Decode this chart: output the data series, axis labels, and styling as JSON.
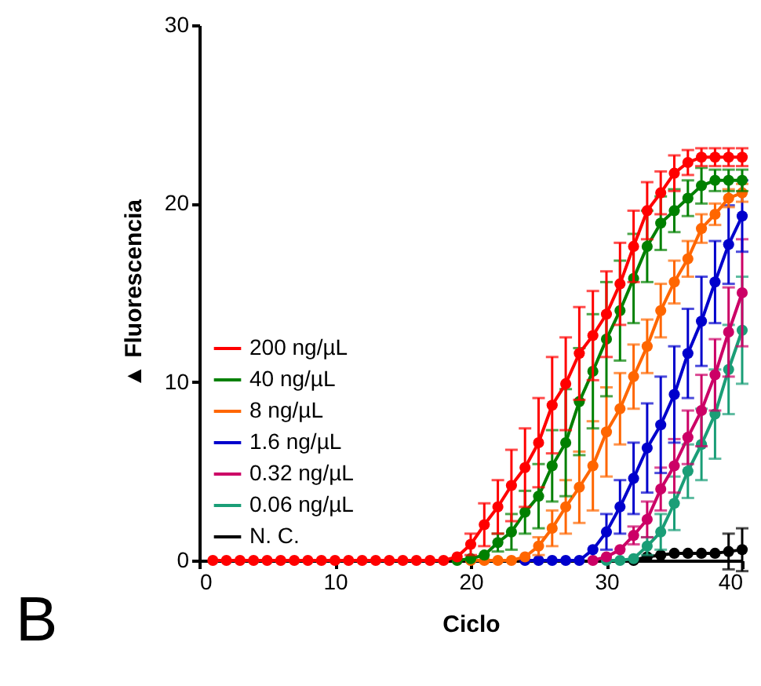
{
  "chart_data": {
    "type": "line",
    "xlabel": "Ciclo",
    "ylabel": "▲ Fluorescencia",
    "annotations": [
      "B"
    ],
    "x": [
      1,
      2,
      3,
      4,
      5,
      6,
      7,
      8,
      9,
      10,
      11,
      12,
      13,
      14,
      15,
      16,
      17,
      18,
      19,
      20,
      21,
      22,
      23,
      24,
      25,
      26,
      27,
      28,
      29,
      30,
      31,
      32,
      33,
      34,
      35,
      36,
      37,
      38,
      39,
      40
    ],
    "xlim": [
      0,
      40
    ],
    "xticks": [
      0,
      10,
      20,
      30,
      40
    ],
    "ylim": [
      0,
      30
    ],
    "yticks": [
      0,
      10,
      20,
      30
    ],
    "grid": false,
    "legend": "bottom left",
    "marker": "circle",
    "line_style": "solid",
    "series": [
      {
        "name": "200 ng/µL",
        "color": "#ff0000",
        "values": [
          0,
          0,
          0,
          0,
          0,
          0,
          0,
          0,
          0,
          0,
          0,
          0,
          0,
          0,
          0,
          0,
          0,
          0,
          0.2,
          0.9,
          2.0,
          3.0,
          4.2,
          5.2,
          6.6,
          8.7,
          9.9,
          11.6,
          12.6,
          13.8,
          15.5,
          17.6,
          19.6,
          20.6,
          21.7,
          22.3,
          22.6,
          22.6,
          22.6,
          22.6
        ],
        "errors": [
          null,
          null,
          null,
          null,
          null,
          null,
          null,
          null,
          null,
          null,
          null,
          null,
          null,
          null,
          null,
          null,
          null,
          null,
          null,
          0.6,
          1.2,
          1.5,
          2,
          2.2,
          2.5,
          2.7,
          2.6,
          2.6,
          2.5,
          2.4,
          2.3,
          2,
          1.6,
          1.2,
          1,
          0.7,
          0.5,
          0.5,
          0.5,
          0.5
        ]
      },
      {
        "name": "40 ng/µL",
        "color": "#008000",
        "values": [
          null,
          null,
          null,
          null,
          null,
          null,
          null,
          null,
          null,
          null,
          null,
          null,
          null,
          null,
          null,
          null,
          null,
          null,
          0,
          0.1,
          0.3,
          1.0,
          1.6,
          2.7,
          3.6,
          5.3,
          6.6,
          8.9,
          10.6,
          12.4,
          14.0,
          15.8,
          17.6,
          18.9,
          19.6,
          20.3,
          21.0,
          21.3,
          21.3,
          21.3
        ],
        "errors": [
          null,
          null,
          null,
          null,
          null,
          null,
          null,
          null,
          null,
          null,
          null,
          null,
          null,
          null,
          null,
          null,
          null,
          null,
          null,
          null,
          null,
          0.5,
          1,
          1.2,
          1.8,
          2,
          3,
          3,
          3.2,
          3.2,
          2.8,
          2.5,
          2,
          1.5,
          1.2,
          1,
          1,
          0.6,
          0.6,
          0.6
        ]
      },
      {
        "name": "8 ng/µL",
        "color": "#ff6600",
        "values": [
          null,
          null,
          null,
          null,
          null,
          null,
          null,
          null,
          null,
          null,
          null,
          null,
          null,
          null,
          null,
          null,
          null,
          null,
          null,
          0,
          0,
          0,
          0,
          0.2,
          0.8,
          1.8,
          3.0,
          4.1,
          5.3,
          7.2,
          8.5,
          10.3,
          12.0,
          14.0,
          15.6,
          16.9,
          18.6,
          19.4,
          20.3,
          20.6
        ],
        "errors": [
          null,
          null,
          null,
          null,
          null,
          null,
          null,
          null,
          null,
          null,
          null,
          null,
          null,
          null,
          null,
          null,
          null,
          null,
          null,
          null,
          null,
          null,
          null,
          null,
          0.5,
          1,
          1.5,
          2,
          2.5,
          2.5,
          2,
          1.8,
          1.5,
          1.5,
          1.2,
          1,
          0.8,
          0.6,
          0.5,
          0.5
        ]
      },
      {
        "name": "1.6 ng/µL",
        "color": "#0000cc",
        "values": [
          null,
          null,
          null,
          null,
          null,
          null,
          null,
          null,
          null,
          null,
          null,
          null,
          null,
          null,
          null,
          null,
          null,
          null,
          null,
          null,
          null,
          null,
          null,
          0,
          0,
          0,
          0,
          0,
          0.6,
          1.6,
          3.0,
          4.6,
          6.3,
          7.6,
          9.3,
          11.6,
          13.4,
          15.6,
          17.7,
          19.3
        ],
        "errors": [
          null,
          null,
          null,
          null,
          null,
          null,
          null,
          null,
          null,
          null,
          null,
          null,
          null,
          null,
          null,
          null,
          null,
          null,
          null,
          null,
          null,
          null,
          null,
          null,
          null,
          null,
          null,
          null,
          null,
          1,
          1.5,
          2,
          2.5,
          2.7,
          2.7,
          2.5,
          2.5,
          2.3,
          2.2,
          2
        ]
      },
      {
        "name": "0.32 ng/µL",
        "color": "#cc0066",
        "values": [
          null,
          null,
          null,
          null,
          null,
          null,
          null,
          null,
          null,
          null,
          null,
          null,
          null,
          null,
          null,
          null,
          null,
          null,
          null,
          null,
          null,
          null,
          null,
          null,
          null,
          null,
          null,
          null,
          0,
          0.2,
          0.6,
          1.4,
          2.3,
          4.0,
          5.3,
          6.9,
          8.4,
          10.4,
          12.8,
          15.0
        ],
        "errors": [
          null,
          null,
          null,
          null,
          null,
          null,
          null,
          null,
          null,
          null,
          null,
          null,
          null,
          null,
          null,
          null,
          null,
          null,
          null,
          null,
          null,
          null,
          null,
          null,
          null,
          null,
          null,
          null,
          null,
          null,
          null,
          0.5,
          1,
          1.2,
          1.5,
          1.5,
          2,
          2,
          2.5,
          3
        ]
      },
      {
        "name": "0.06 ng/µL",
        "color": "#1a9e77",
        "values": [
          null,
          null,
          null,
          null,
          null,
          null,
          null,
          null,
          null,
          null,
          null,
          null,
          null,
          null,
          null,
          null,
          null,
          null,
          null,
          null,
          null,
          null,
          null,
          null,
          null,
          null,
          null,
          null,
          null,
          0,
          0,
          0.1,
          0.8,
          1.6,
          3.2,
          5.0,
          6.5,
          8.2,
          10.7,
          12.9
        ],
        "errors": [
          null,
          null,
          null,
          null,
          null,
          null,
          null,
          null,
          null,
          null,
          null,
          null,
          null,
          null,
          null,
          null,
          null,
          null,
          null,
          null,
          null,
          null,
          null,
          null,
          null,
          null,
          null,
          null,
          null,
          null,
          null,
          null,
          0.5,
          1,
          1.5,
          1.5,
          2,
          2.5,
          2.5,
          3
        ]
      },
      {
        "name": "N. C.",
        "color": "#000000",
        "values": [
          null,
          null,
          null,
          null,
          null,
          null,
          null,
          null,
          null,
          null,
          null,
          null,
          null,
          null,
          null,
          null,
          null,
          null,
          null,
          null,
          null,
          null,
          null,
          null,
          null,
          null,
          null,
          null,
          null,
          null,
          null,
          0,
          0.2,
          0.3,
          0.4,
          0.4,
          0.4,
          0.4,
          0.5,
          0.6
        ],
        "errors": [
          null,
          null,
          null,
          null,
          null,
          null,
          null,
          null,
          null,
          null,
          null,
          null,
          null,
          null,
          null,
          null,
          null,
          null,
          null,
          null,
          null,
          null,
          null,
          null,
          null,
          null,
          null,
          null,
          null,
          null,
          null,
          null,
          null,
          null,
          null,
          null,
          null,
          null,
          1,
          1.2
        ]
      }
    ]
  }
}
